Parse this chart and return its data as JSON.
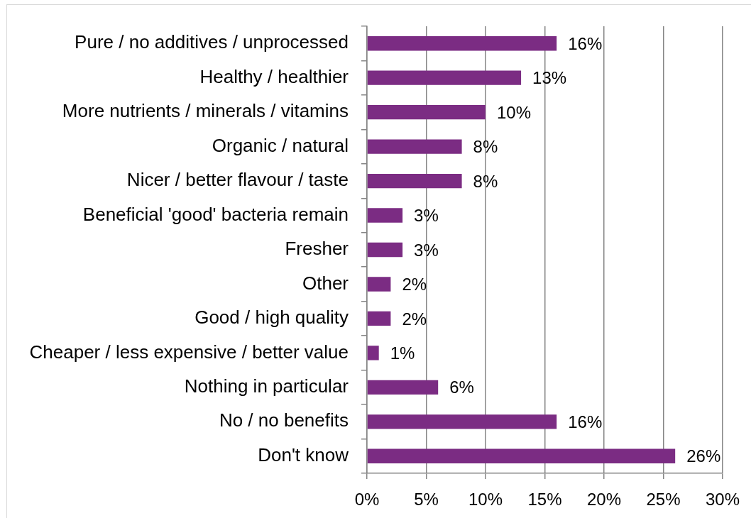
{
  "chart_data": {
    "type": "bar",
    "orientation": "horizontal",
    "categories": [
      "Pure / no additives / unprocessed",
      "Healthy / healthier",
      "More nutrients / minerals / vitamins",
      "Organic / natural",
      "Nicer / better flavour / taste",
      "Beneficial 'good' bacteria remain",
      "Fresher",
      "Other",
      "Good / high quality",
      "Cheaper / less expensive / better value",
      "Nothing in particular",
      "No / no benefits",
      "Don't know"
    ],
    "values": [
      16,
      13,
      10,
      8,
      8,
      3,
      3,
      2,
      2,
      1,
      6,
      16,
      26
    ],
    "value_labels": [
      "16%",
      "13%",
      "10%",
      "8%",
      "8%",
      "3%",
      "3%",
      "2%",
      "2%",
      "1%",
      "6%",
      "16%",
      "26%"
    ],
    "color": "#7b2c83",
    "xlim": [
      0,
      30
    ],
    "xticks": [
      {
        "value": 0,
        "label": "0%"
      },
      {
        "value": 5,
        "label": "5%"
      },
      {
        "value": 10,
        "label": "10%"
      },
      {
        "value": 15,
        "label": "15%"
      },
      {
        "value": 20,
        "label": "20%"
      },
      {
        "value": 25,
        "label": "25%"
      },
      {
        "value": 30,
        "label": "30%"
      }
    ],
    "grid": "x"
  }
}
